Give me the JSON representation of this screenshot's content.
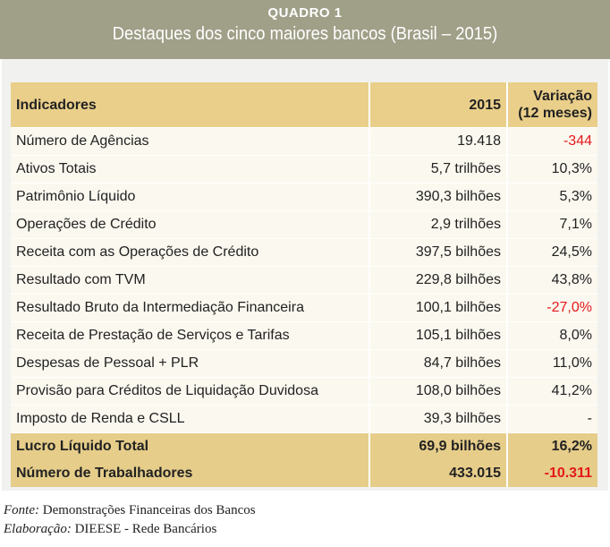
{
  "header": {
    "kicker": "QUADRO 1",
    "title": "Destaques dos cinco maiores bancos (Brasil – 2015)"
  },
  "colors": {
    "band": "#a09f88",
    "header_row": "#eacf8a",
    "highlight_row": "#e6cd8a",
    "negative": "#e3191b"
  },
  "table": {
    "columns": [
      "Indicadores",
      "2015",
      "Variação (12 meses)"
    ],
    "rows": [
      {
        "label": "Número de Agências",
        "value": "19.418",
        "change": "-344",
        "negative": true,
        "bold": false
      },
      {
        "label": "Ativos Totais",
        "value": "5,7 trilhões",
        "change": "10,3%",
        "negative": false,
        "bold": false
      },
      {
        "label": "Patrimônio Líquido",
        "value": "390,3 bilhões",
        "change": "5,3%",
        "negative": false,
        "bold": false
      },
      {
        "label": "Operações de Crédito",
        "value": "2,9 trilhões",
        "change": "7,1%",
        "negative": false,
        "bold": false
      },
      {
        "label": "Receita com as Operações de Crédito",
        "value": "397,5 bilhões",
        "change": "24,5%",
        "negative": false,
        "bold": false
      },
      {
        "label": "Resultado com TVM",
        "value": "229,8 bilhões",
        "change": "43,8%",
        "negative": false,
        "bold": false
      },
      {
        "label": "Resultado Bruto da Intermediação Financeira",
        "value": "100,1 bilhões",
        "change": "-27,0%",
        "negative": true,
        "bold": false
      },
      {
        "label": "Receita de Prestação de Serviços e Tarifas",
        "value": "105,1 bilhões",
        "change": "8,0%",
        "negative": false,
        "bold": false
      },
      {
        "label": "Despesas de Pessoal + PLR",
        "value": "84,7 bilhões",
        "change": "11,0%",
        "negative": false,
        "bold": false
      },
      {
        "label": "Provisão para Créditos de Liquidação Duvidosa",
        "value": "108,0 bilhões",
        "change": "41,2%",
        "negative": false,
        "bold": false
      },
      {
        "label": "Imposto de Renda e CSLL",
        "value": "39,3 bilhões",
        "change": "-",
        "negative": false,
        "bold": false
      },
      {
        "label": "Lucro Líquido Total",
        "value": "69,9 bilhões",
        "change": "16,2%",
        "negative": false,
        "bold": true
      },
      {
        "label": "Número de Trabalhadores",
        "value": "433.015",
        "change": "-10.311",
        "negative": true,
        "bold": true
      }
    ]
  },
  "footer": {
    "source_label": "Fonte:",
    "source": "Demonstrações Financeiras dos Bancos",
    "credit_label": "Elaboração:",
    "credit": "DIEESE - Rede Bancários"
  }
}
